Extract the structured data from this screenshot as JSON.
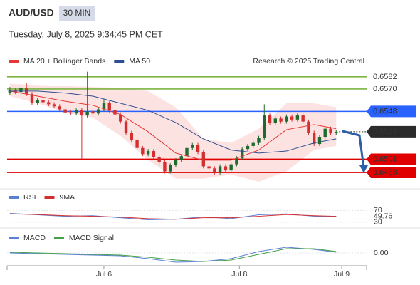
{
  "header": {
    "symbol": "AUD/USD",
    "interval": "30 MIN",
    "timestamp": "Tuesday, July 8, 2025 9:34:45 PM CET"
  },
  "chart_data": [
    {
      "type": "candlestick",
      "source": "Research © 2025 Trading Central",
      "xlim": [
        -0.5,
        64.5
      ],
      "ylim": [
        0.6474,
        0.6591
      ],
      "up_color": "#1f6b2e",
      "down_color": "#d32f2f",
      "candles": {
        "x": [
          0,
          1,
          2,
          3,
          4,
          5,
          6,
          7,
          8,
          9,
          10,
          11,
          12,
          13,
          14,
          15,
          16,
          17,
          18,
          19,
          20,
          21,
          22,
          23,
          24,
          25,
          26,
          27,
          28,
          29,
          30,
          31,
          32,
          33,
          34,
          35,
          36,
          37,
          38,
          39,
          40,
          41,
          42,
          43,
          44,
          45,
          46,
          47,
          48,
          49,
          50,
          51,
          52,
          53,
          54,
          55,
          56,
          57,
          58,
          59
        ],
        "open": [
          0.6566,
          0.6569,
          0.6567,
          0.6571,
          0.6565,
          0.6556,
          0.6559,
          0.6557,
          0.6555,
          0.6553,
          0.655,
          0.6547,
          0.6546,
          0.6549,
          0.6544,
          0.6548,
          0.6546,
          0.655,
          0.6556,
          0.6549,
          0.6545,
          0.6538,
          0.6527,
          0.652,
          0.6512,
          0.6506,
          0.6509,
          0.6503,
          0.6498,
          0.6489,
          0.6495,
          0.65,
          0.6504,
          0.6512,
          0.6515,
          0.6508,
          0.6494,
          0.6492,
          0.6488,
          0.6494,
          0.649,
          0.6496,
          0.6502,
          0.6511,
          0.6514,
          0.6517,
          0.6522,
          0.6544,
          0.6537,
          0.6541,
          0.6538,
          0.6543,
          0.654,
          0.6544,
          0.6538,
          0.6527,
          0.6516,
          0.6523,
          0.6531,
          0.6527
        ],
        "high": [
          0.6572,
          0.6571,
          0.6574,
          0.6576,
          0.6567,
          0.6561,
          0.6561,
          0.6559,
          0.6557,
          0.6555,
          0.6552,
          0.6549,
          0.6551,
          0.6551,
          0.6587,
          0.655,
          0.6552,
          0.656,
          0.6558,
          0.6551,
          0.6547,
          0.654,
          0.6529,
          0.6522,
          0.6514,
          0.6511,
          0.6511,
          0.6505,
          0.65,
          0.6497,
          0.6502,
          0.6506,
          0.6514,
          0.6517,
          0.6517,
          0.651,
          0.6496,
          0.6494,
          0.6496,
          0.6496,
          0.6498,
          0.6504,
          0.6513,
          0.6516,
          0.6519,
          0.6524,
          0.6555,
          0.6546,
          0.6543,
          0.6543,
          0.6545,
          0.6545,
          0.6546,
          0.6546,
          0.654,
          0.6529,
          0.6525,
          0.6533,
          0.6533,
          0.653
        ],
        "low": [
          0.6564,
          0.6565,
          0.6565,
          0.6563,
          0.6554,
          0.6554,
          0.6555,
          0.6553,
          0.6551,
          0.6548,
          0.6545,
          0.6544,
          0.6544,
          0.6501,
          0.6542,
          0.6544,
          0.6544,
          0.6548,
          0.6547,
          0.6543,
          0.6536,
          0.6525,
          0.6518,
          0.651,
          0.6504,
          0.6504,
          0.6501,
          0.6496,
          0.6487,
          0.6487,
          0.6493,
          0.6498,
          0.6502,
          0.651,
          0.6506,
          0.6492,
          0.649,
          0.6486,
          0.6486,
          0.6488,
          0.6488,
          0.6494,
          0.65,
          0.6509,
          0.6512,
          0.6515,
          0.652,
          0.6535,
          0.6535,
          0.6536,
          0.6536,
          0.6538,
          0.6538,
          0.6536,
          0.6525,
          0.6514,
          0.6514,
          0.6521,
          0.6525,
          0.6525
        ],
        "close": [
          0.6569,
          0.6567,
          0.6571,
          0.6565,
          0.6556,
          0.6559,
          0.6557,
          0.6555,
          0.6553,
          0.655,
          0.6547,
          0.6546,
          0.6549,
          0.6544,
          0.6548,
          0.6546,
          0.655,
          0.6556,
          0.6549,
          0.6545,
          0.6538,
          0.6527,
          0.652,
          0.6512,
          0.6506,
          0.6509,
          0.6503,
          0.6498,
          0.6489,
          0.6495,
          0.65,
          0.6504,
          0.6512,
          0.6515,
          0.6508,
          0.6494,
          0.6492,
          0.6488,
          0.6494,
          0.649,
          0.6496,
          0.6502,
          0.6511,
          0.6514,
          0.6517,
          0.6522,
          0.6544,
          0.6537,
          0.6541,
          0.6538,
          0.6543,
          0.654,
          0.6544,
          0.6538,
          0.6527,
          0.6516,
          0.6523,
          0.6531,
          0.6527,
          0.6528
        ]
      },
      "x": [
        0,
        5,
        10,
        15,
        20,
        25,
        30,
        35,
        40,
        45,
        50,
        55,
        59
      ],
      "series": [
        {
          "name": "MA 20 + Bollinger Bands",
          "color": "#e53935",
          "band_color": "#fde2e2",
          "values": [
            0.6568,
            0.6563,
            0.6558,
            0.6554,
            0.6545,
            0.6528,
            0.6507,
            0.65,
            0.65,
            0.651,
            0.653,
            0.6535,
            0.6531
          ],
          "upper": [
            0.6575,
            0.6574,
            0.6573,
            0.6572,
            0.6571,
            0.6568,
            0.6552,
            0.6521,
            0.6517,
            0.6531,
            0.6556,
            0.6556,
            0.6552
          ],
          "lower": [
            0.6563,
            0.6556,
            0.6547,
            0.6542,
            0.6524,
            0.65,
            0.6482,
            0.6482,
            0.6486,
            0.6479,
            0.6489,
            0.651,
            0.6514
          ]
        },
        {
          "name": "MA 50",
          "color": "#2f4f8f",
          "values": [
            0.6568,
            0.6568,
            0.6566,
            0.6563,
            0.6556,
            0.6549,
            0.6537,
            0.6521,
            0.651,
            0.6507,
            0.6509,
            0.6517,
            0.6521
          ]
        }
      ],
      "levels": [
        {
          "value": 0.6582,
          "label": "0.6582",
          "color": "#7cb342",
          "box": false,
          "line": "solid"
        },
        {
          "value": 0.657,
          "label": "0.6570",
          "color": "#7cb342",
          "box": false,
          "line": "solid"
        },
        {
          "value": 0.6548,
          "label": "0.6548",
          "color": "#2962ff",
          "box": true,
          "line": "solid"
        },
        {
          "value": 0.6528,
          "label": "0.6528",
          "color": "#2b2b2b",
          "box": true,
          "line": "dotted"
        },
        {
          "value": 0.6501,
          "label": "0.6501",
          "color": "#e00000",
          "box": true,
          "line": "solid"
        },
        {
          "value": 0.6488,
          "label": "0.6488",
          "color": "#e00000",
          "box": true,
          "line": "solid"
        }
      ]
    },
    {
      "type": "line",
      "xlim": [
        -0.5,
        64.5
      ],
      "ylim": [
        15,
        95
      ],
      "yticks": [
        30,
        70
      ],
      "x": [
        0,
        5,
        10,
        15,
        20,
        25,
        30,
        35,
        40,
        45,
        50,
        55,
        59
      ],
      "series": [
        {
          "name": "RSI",
          "color": "#5b7fd6",
          "values": [
            60,
            55,
            50,
            52,
            45,
            38,
            40,
            48,
            42,
            55,
            58,
            50,
            49.76
          ]
        },
        {
          "name": "9MA",
          "color": "#d32f2f",
          "values": [
            58,
            56,
            52,
            50,
            47,
            42,
            40,
            45,
            45,
            50,
            56,
            52,
            50
          ]
        }
      ]
    },
    {
      "type": "line",
      "xlim": [
        -0.5,
        64.5
      ],
      "ylim": [
        -0.0017,
        0.0015
      ],
      "yticks": [
        {
          "value": 0,
          "label": "0.00"
        }
      ],
      "x": [
        0,
        5,
        10,
        15,
        20,
        25,
        30,
        35,
        40,
        45,
        50,
        55,
        59
      ],
      "xticks": [
        {
          "value": 17,
          "label": "Jul 6"
        },
        {
          "value": 41.5,
          "label": "Jul 8"
        },
        {
          "value": 60,
          "label": "Jul 9"
        }
      ],
      "series": [
        {
          "name": "MACD",
          "color": "#5b7fd6",
          "values": [
            0.0,
            -0.0001,
            -0.0002,
            -0.0003,
            -0.0004,
            -0.0008,
            -0.0013,
            -0.0012,
            -0.0008,
            0.0002,
            0.0008,
            0.0005,
            0.0001
          ]
        },
        {
          "name": "MACD Signal",
          "color": "#43a047",
          "values": [
            0.0001,
            0.0,
            -0.0001,
            -0.0002,
            -0.0003,
            -0.0006,
            -0.001,
            -0.0012,
            -0.001,
            -0.0002,
            0.0006,
            0.0006,
            0.0002
          ]
        }
      ]
    }
  ]
}
